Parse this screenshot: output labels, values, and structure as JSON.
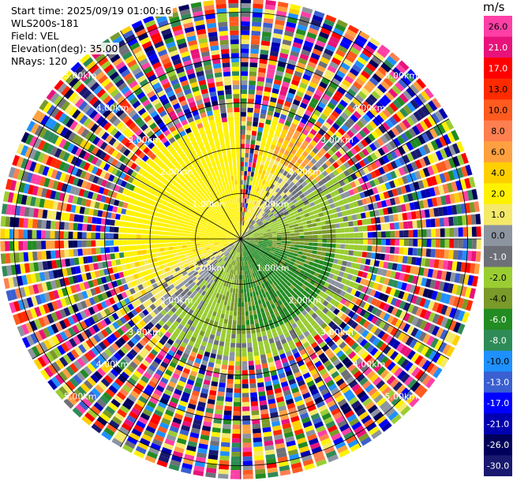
{
  "header": {
    "start_time": "Start time: 2025/09/19 01:00:16",
    "instrument": "WLS200s-181",
    "field": "Field: VEL",
    "elevation": "Elevation(deg): 35.00",
    "nrays": "NRays: 120"
  },
  "chart_data": {
    "type": "heatmap",
    "projection": "polar (PPI scan)",
    "grid": true,
    "ring_labels_km": [
      1.0,
      2.0,
      3.0,
      4.0,
      5.0
    ],
    "ring_label_text": [
      "1.00km",
      "2.00km",
      "3.00km",
      "4.00km",
      "5.00km"
    ],
    "max_range_km": 5.3,
    "n_rays": 120,
    "colorbar": {
      "unit": "m/s",
      "range": [
        -30.0,
        30.0
      ],
      "tick_labels": [
        "26.0",
        "21.0",
        "17.0",
        "13.0",
        "10.0",
        "8.0",
        "6.0",
        "4.0",
        "2.0",
        "1.0",
        "0.0",
        "-1.0",
        "-2.0",
        "-4.0",
        "-6.0",
        "-8.0",
        "-10.0",
        "-13.0",
        "-17.0",
        "-21.0",
        "-26.0",
        "-30.0"
      ],
      "bins": [
        {
          "label": "26.0",
          "color": "#ff3fa6"
        },
        {
          "label": "21.0",
          "color": "#e8137a"
        },
        {
          "label": "17.0",
          "color": "#ff0000"
        },
        {
          "label": "13.0",
          "color": "#ff2a00"
        },
        {
          "label": "10.0",
          "color": "#ff5a1f"
        },
        {
          "label": "8.0",
          "color": "#ff7f50"
        },
        {
          "label": "6.0",
          "color": "#ffa040"
        },
        {
          "label": "4.0",
          "color": "#ffd000"
        },
        {
          "label": "2.0",
          "color": "#fff200"
        },
        {
          "label": "1.0",
          "color": "#f5e96a"
        },
        {
          "label": "0.0",
          "color": "#8c94a0"
        },
        {
          "label": "-1.0",
          "color": "#6e7078"
        },
        {
          "label": "-2.0",
          "color": "#9acd32"
        },
        {
          "label": "-4.0",
          "color": "#7a9a2a"
        },
        {
          "label": "-6.0",
          "color": "#228b22"
        },
        {
          "label": "-8.0",
          "color": "#2e8b57"
        },
        {
          "label": "-10.0",
          "color": "#1e90ff"
        },
        {
          "label": "-13.0",
          "color": "#3a5fd0"
        },
        {
          "label": "-17.0",
          "color": "#0000ff"
        },
        {
          "label": "-21.0",
          "color": "#0000b0"
        },
        {
          "label": "-26.0",
          "color": "#00005a"
        },
        {
          "label": "-30.0",
          "color": "#191970"
        }
      ]
    },
    "pattern_summary": {
      "clean_signal_range_km": [
        0.0,
        2.8
      ],
      "noise_range_km": [
        2.8,
        5.3
      ],
      "dominant_positive_sector": "north-west to north-east (yellow, +2 to +4 m/s)",
      "dominant_negative_sector": "south to east (green, -2 to -6 m/s)"
    }
  }
}
